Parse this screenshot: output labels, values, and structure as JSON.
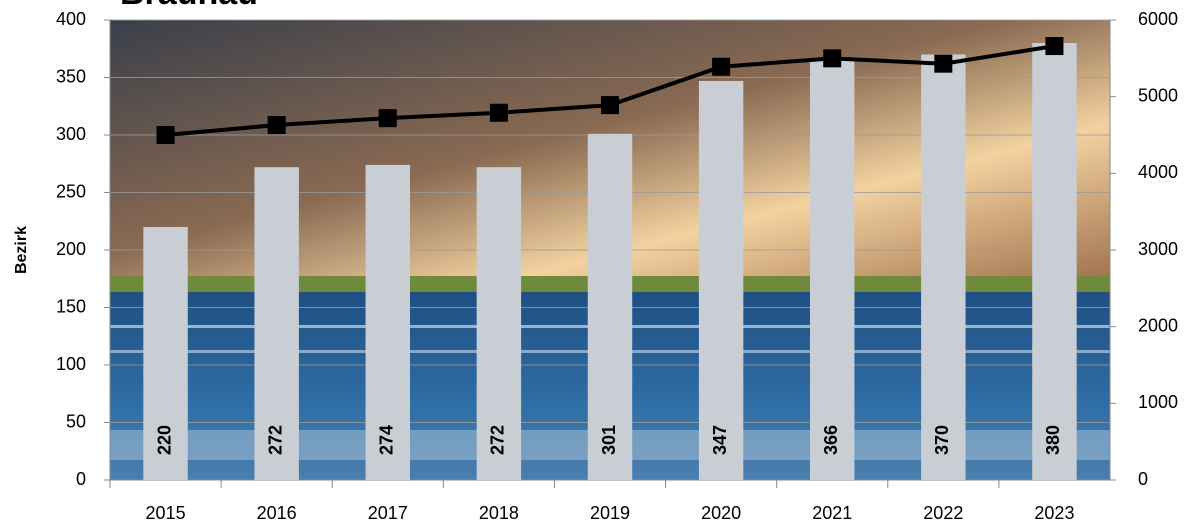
{
  "chart_data": {
    "type": "bar_line",
    "title": "Braunau",
    "y_label": "Bezirk",
    "categories": [
      "2015",
      "2016",
      "2017",
      "2018",
      "2019",
      "2020",
      "2021",
      "2022",
      "2023"
    ],
    "series": [
      {
        "name": "Bezirk",
        "type": "bar",
        "color": "#c9ced4",
        "values": [
          220,
          272,
          274,
          272,
          301,
          347,
          366,
          370,
          380
        ]
      },
      {
        "name": "Braunau",
        "type": "line",
        "axis": "y2",
        "color": "#000000",
        "values": [
          4500,
          4630,
          4720,
          4790,
          4890,
          5390,
          5500,
          5430,
          5660
        ]
      }
    ],
    "ylim": [
      0,
      400
    ],
    "yticks": [
      0,
      50,
      100,
      150,
      200,
      250,
      300,
      350,
      400
    ],
    "y2lim": [
      0,
      6000
    ],
    "y2ticks": [
      0,
      1000,
      2000,
      3000,
      4000,
      5000,
      6000
    ],
    "grid": true
  }
}
